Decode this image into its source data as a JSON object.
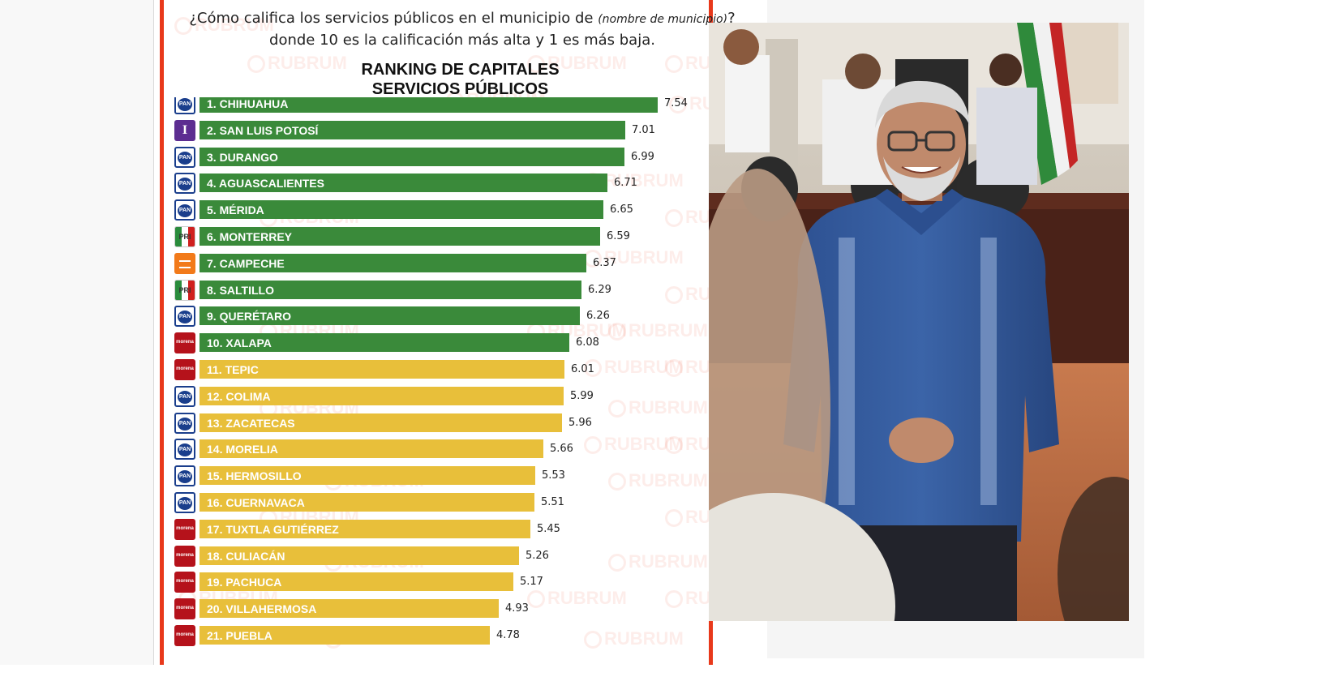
{
  "question": {
    "part1": "¿Cómo califica los servicios públicos en el municipio de",
    "hint": "(nombre de municipio)",
    "part2": "? donde 10 es la calificación más alta y 1 es más baja."
  },
  "watermark": "RUBRUM",
  "colors": {
    "top10": "#3a8a3a",
    "rest": "#e8bf3a",
    "accent": "#e8391b"
  },
  "chart_data": {
    "type": "bar",
    "orientation": "horizontal",
    "title_line1": "RANKING DE CAPITALES",
    "title_line2": "SERVICIOS PÚBLICOS",
    "categories": [
      "1. CHIHUAHUA",
      "2. SAN LUIS POTOSÍ",
      "3. DURANGO",
      "4. AGUASCALIENTES",
      "5. MÉRIDA",
      "6. MONTERREY",
      "7. CAMPECHE",
      "8. SALTILLO",
      "9. QUERÉTARO",
      "10. XALAPA",
      "11. TEPIC",
      "12. COLIMA",
      "13. ZACATECAS",
      "14. MORELIA",
      "15. HERMOSILLO",
      "16. CUERNAVACA",
      "17. TUXTLA GUTIÉRREZ",
      "18. CULIACÁN",
      "19. PACHUCA",
      "20. VILLAHERMOSA",
      "21. PUEBLA"
    ],
    "values": [
      7.54,
      7.01,
      6.99,
      6.71,
      6.65,
      6.59,
      6.37,
      6.29,
      6.26,
      6.08,
      6.01,
      5.99,
      5.96,
      5.66,
      5.53,
      5.51,
      5.45,
      5.26,
      5.17,
      4.93,
      4.78
    ],
    "value_labels": [
      "7.54",
      "7.01",
      "6.99",
      "6.71",
      "6.65",
      "6.59",
      "6.37",
      "6.29",
      "6.26",
      "6.08",
      "6.01",
      "5.99",
      "5.96",
      "5.66",
      "5.53",
      "5.51",
      "5.45",
      "5.26",
      "5.17",
      "4.93",
      "4.78"
    ],
    "parties": [
      "pan",
      "indep",
      "pan",
      "pan",
      "pan",
      "pri",
      "mc",
      "pri",
      "pan",
      "morena",
      "morena",
      "pan",
      "pan",
      "pan",
      "pan",
      "pan",
      "morena",
      "morena",
      "morena",
      "morena",
      "morena"
    ],
    "party_logo_text": {
      "pan": "PAN",
      "pri": "PRI",
      "morena": "morena",
      "indep": "I",
      "mc": ""
    },
    "xlim": [
      0,
      7.54
    ],
    "grid": false,
    "legend": "none"
  },
  "photo_alt": "Hombre sonriente con guayabera azul en una sala de cabildo"
}
